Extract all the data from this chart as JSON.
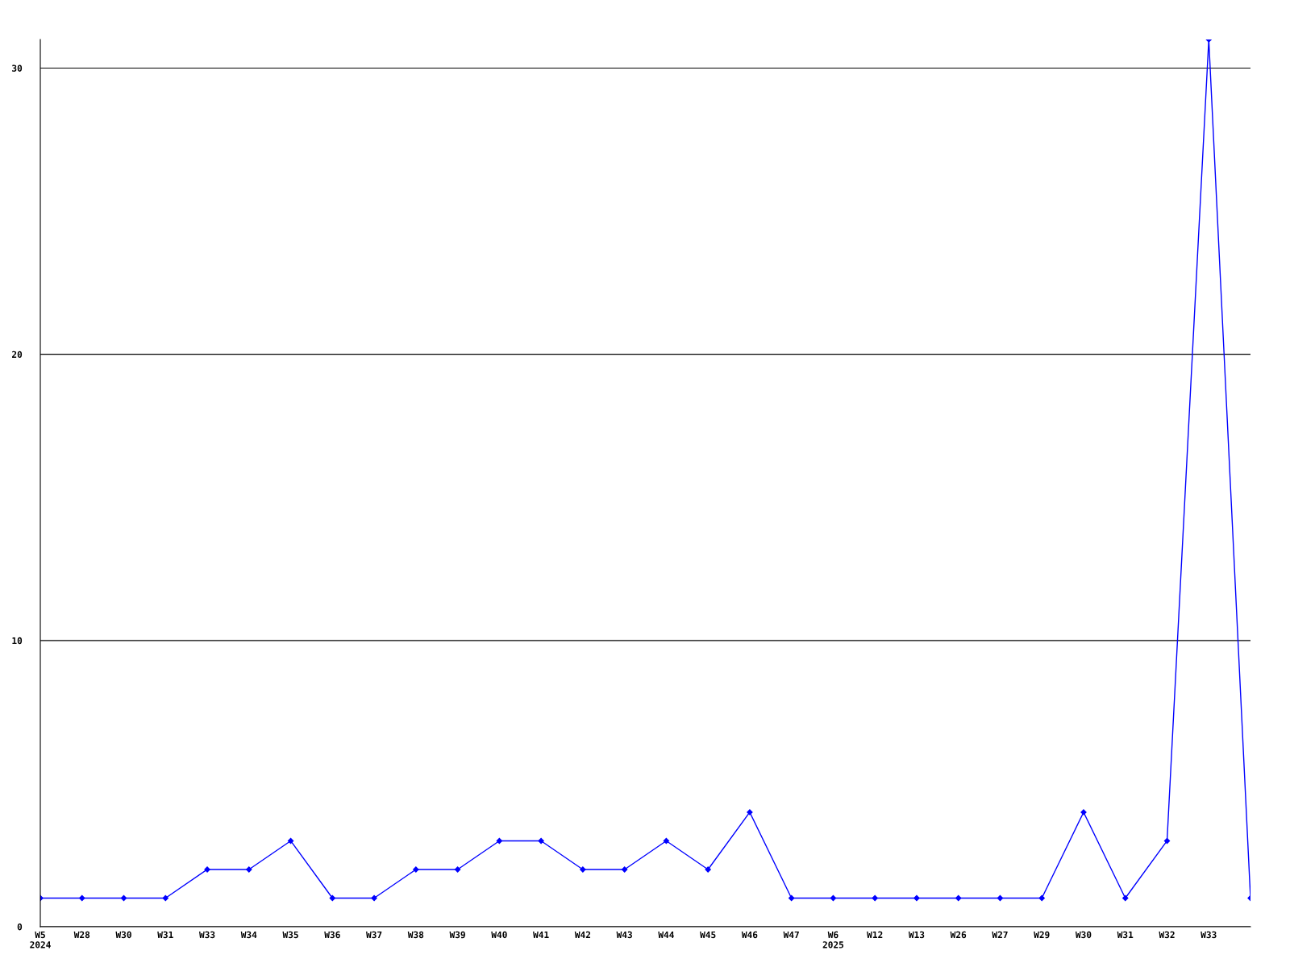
{
  "chart_data": {
    "type": "line",
    "categories": [
      "W5\n2024",
      "W28",
      "W30",
      "W31",
      "W33",
      "W34",
      "W35",
      "W36",
      "W37",
      "W38",
      "W39",
      "W40",
      "W41",
      "W42",
      "W43",
      "W44",
      "W45",
      "W46",
      "W47",
      "W6\n2025",
      "W12",
      "W13",
      "W26",
      "W27",
      "W29",
      "W30",
      "W31",
      "W32",
      "W33",
      null
    ],
    "series": [
      {
        "color": "#0000ff",
        "values": [
          1,
          1,
          1,
          1,
          2,
          2,
          3,
          1,
          1,
          2,
          2,
          3,
          3,
          2,
          2,
          3,
          2,
          4,
          1,
          1,
          1,
          1,
          1,
          1,
          1,
          4,
          1,
          3,
          31,
          1
        ]
      }
    ],
    "ylim": [
      0,
      31
    ],
    "yticks": [
      0,
      10,
      20,
      30
    ],
    "grid": "y",
    "marker": "diamond",
    "line_style": "solid",
    "legend": false
  }
}
